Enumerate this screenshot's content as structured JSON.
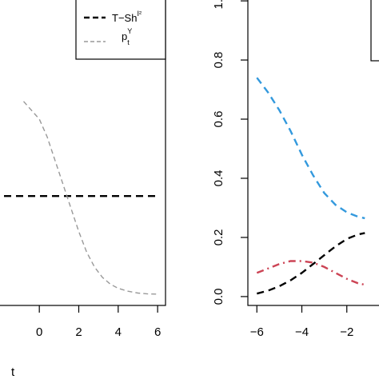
{
  "chart_data": [
    {
      "type": "line",
      "xlabel": "t",
      "ylabel": "",
      "xlim": [
        -2.4,
        6.4
      ],
      "ylim": [
        -0.03,
        1.03
      ],
      "x_ticks": [
        "0",
        "2",
        "4",
        "6"
      ],
      "legend_position": "top-right",
      "legend": [
        {
          "label": "T−Sh",
          "sup": "I²",
          "sub": "",
          "style": "dashed-thick",
          "color": "#000000"
        },
        {
          "label": "p",
          "sup": "Y",
          "sub": "t",
          "style": "dashed-thin",
          "color": "#999999"
        }
      ],
      "series": [
        {
          "name": "T−Sh I²",
          "color": "#000000",
          "style": "dashed-thick",
          "x": [
            -2.4,
            6.0
          ],
          "y": [
            0.34,
            0.34
          ]
        },
        {
          "name": "p_t^Y",
          "color": "#999999",
          "style": "dashed-thin",
          "x": [
            -0.8,
            0.0,
            0.4,
            0.8,
            1.2,
            1.6,
            2.0,
            2.4,
            2.8,
            3.2,
            3.6,
            4.0,
            4.5,
            5.0,
            5.5,
            6.0
          ],
          "y": [
            0.66,
            0.6,
            0.54,
            0.46,
            0.38,
            0.3,
            0.22,
            0.15,
            0.1,
            0.065,
            0.042,
            0.028,
            0.018,
            0.012,
            0.009,
            0.008
          ]
        }
      ]
    },
    {
      "type": "line",
      "xlabel": "",
      "ylabel": "",
      "xlim": [
        -6.4,
        0.0
      ],
      "ylim": [
        -0.03,
        1.03
      ],
      "x_ticks": [
        "−6",
        "−4",
        "−2"
      ],
      "y_ticks": [
        "0.0",
        "0.2",
        "0.4",
        "0.6",
        "0.8",
        "1.0"
      ],
      "series": [
        {
          "color": "#3399dd",
          "style": "dashed",
          "x": [
            -6.0,
            -5.5,
            -5.0,
            -4.5,
            -4.0,
            -3.5,
            -3.0,
            -2.5,
            -2.0,
            -1.5,
            -1.2
          ],
          "y": [
            0.74,
            0.69,
            0.63,
            0.56,
            0.48,
            0.41,
            0.35,
            0.31,
            0.285,
            0.27,
            0.265
          ]
        },
        {
          "color": "#000000",
          "style": "dashed",
          "x": [
            -6.0,
            -5.5,
            -5.0,
            -4.5,
            -4.0,
            -3.5,
            -3.0,
            -2.5,
            -2.0,
            -1.5,
            -1.2
          ],
          "y": [
            0.01,
            0.02,
            0.035,
            0.055,
            0.08,
            0.11,
            0.14,
            0.17,
            0.195,
            0.21,
            0.215
          ]
        },
        {
          "color": "#cc4455",
          "style": "dashdot",
          "x": [
            -6.0,
            -5.5,
            -5.0,
            -4.5,
            -4.0,
            -3.5,
            -3.0,
            -2.5,
            -2.0,
            -1.5,
            -1.2
          ],
          "y": [
            0.08,
            0.095,
            0.11,
            0.12,
            0.12,
            0.115,
            0.1,
            0.08,
            0.06,
            0.045,
            0.04
          ]
        }
      ]
    }
  ]
}
